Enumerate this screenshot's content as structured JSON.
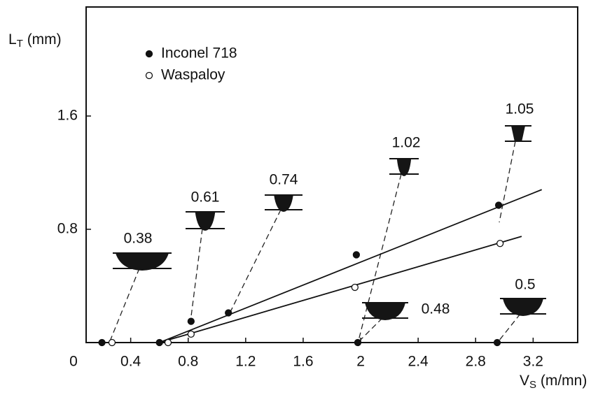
{
  "chart_data": {
    "type": "scatter",
    "y_label": {
      "main": "L",
      "sub": "T",
      "unit": " (mm)"
    },
    "x_label": {
      "main": "V",
      "sub": "S",
      "unit": " (m/mn)"
    },
    "origin_label": "0",
    "xlim": [
      0.09,
      3.51
    ],
    "ylim": [
      0,
      2.37
    ],
    "xticks": [
      0.4,
      0.8,
      1.2,
      1.6,
      2.0,
      2.4,
      2.8,
      3.2
    ],
    "yticks": [
      0.8,
      1.6
    ],
    "series": [
      {
        "name": "Inconel 718",
        "marker": "filled",
        "color": "#111111",
        "x": [
          0.2,
          0.6,
          0.82,
          1.08,
          1.97,
          1.98,
          2.96,
          2.95
        ],
        "values": [
          0,
          0,
          0.15,
          0.21,
          0.62,
          0,
          0.97,
          0
        ],
        "fit": {
          "x": [
            0.6,
            3.26
          ],
          "values": [
            0,
            1.08
          ]
        }
      },
      {
        "name": "Waspaloy",
        "marker": "open",
        "color": "#111111",
        "x": [
          0.27,
          0.66,
          0.82,
          1.96,
          2.97
        ],
        "values": [
          0,
          0,
          0.06,
          0.39,
          0.7
        ],
        "fit": {
          "x": [
            0.6,
            3.12
          ],
          "values": [
            0,
            0.75
          ]
        }
      }
    ],
    "annotations": [
      {
        "text": "0.38"
      },
      {
        "text": "0.61"
      },
      {
        "text": "0.74"
      },
      {
        "text": "1.02"
      },
      {
        "text": "1.05"
      },
      {
        "text": "0.48"
      },
      {
        "text": "0.5"
      }
    ]
  }
}
